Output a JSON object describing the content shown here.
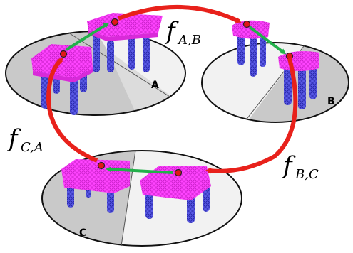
{
  "plates": {
    "a": {
      "label": "A"
    },
    "b": {
      "label": "B"
    },
    "c": {
      "label": "C"
    }
  },
  "maps": {
    "ab": {
      "symbol": "f",
      "subscript": "A,B"
    },
    "bc": {
      "symbol": "f",
      "subscript": "B,C"
    },
    "ca": {
      "symbol": "f",
      "subscript": "C,A"
    }
  },
  "colors": {
    "cycle_arrow": "#e8211b",
    "correspondence_arrow": "#22b04a",
    "tabletop": "#ff33ff",
    "legs": "#3b3bd6",
    "keypoint": "#e01818",
    "plate_shadow": "#c9c9c9",
    "plate_light": "#f2f2f2"
  }
}
